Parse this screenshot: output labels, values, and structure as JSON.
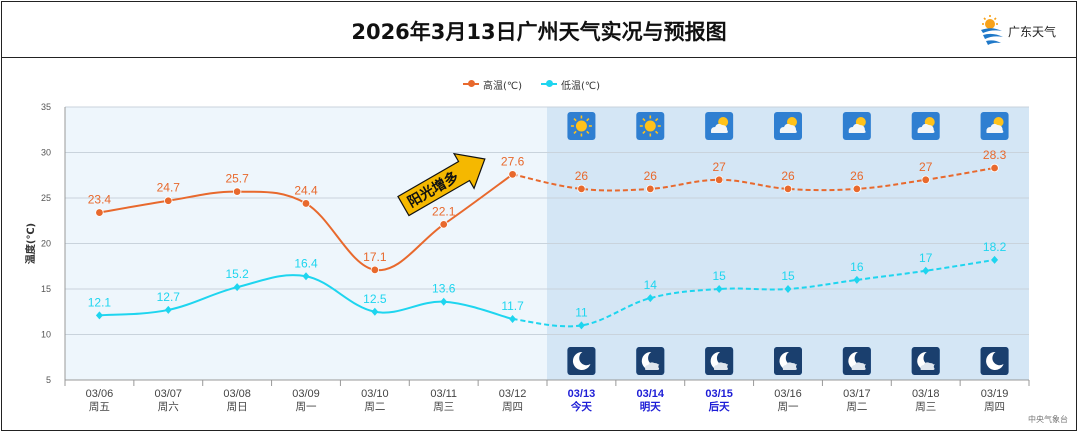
{
  "header": {
    "title": "2026年3月13日广州天气实况与预报图",
    "logo_text": "广东天气"
  },
  "credit": "中央气象台",
  "colors": {
    "high": "#e8692d",
    "low": "#1ed5ef",
    "past_bg": "#eef6fc",
    "forecast_bg": "#d4e6f5",
    "today_label": "#1d1dd6",
    "arrow": "#f5b800"
  },
  "annotation": "阳光增多",
  "chart_data": {
    "type": "line",
    "title": "2026年3月13日广州天气实况与预报图",
    "ylabel": "温度(℃)",
    "ylim": [
      5,
      35
    ],
    "yticks": [
      5,
      10,
      15,
      20,
      25,
      30,
      35
    ],
    "grid": true,
    "legend_position": "top-center",
    "categories": [
      "03/06",
      "03/07",
      "03/08",
      "03/09",
      "03/10",
      "03/11",
      "03/12",
      "03/13",
      "03/14",
      "03/15",
      "03/16",
      "03/17",
      "03/18",
      "03/19"
    ],
    "weekdays": [
      "周五",
      "周六",
      "周日",
      "周一",
      "周二",
      "周三",
      "周四",
      "今天",
      "明天",
      "后天",
      "周一",
      "周二",
      "周三",
      "周四"
    ],
    "highlight_indices": [
      7,
      8,
      9
    ],
    "forecast_start_index": 7,
    "series": [
      {
        "name": "高温(℃)",
        "values": [
          23.4,
          24.7,
          25.7,
          24.4,
          17.1,
          22.1,
          27.6,
          26,
          26,
          27,
          26,
          26,
          27,
          28.3
        ]
      },
      {
        "name": "低温(℃)",
        "values": [
          12.1,
          12.7,
          15.2,
          16.4,
          12.5,
          13.6,
          11.7,
          11,
          14,
          15,
          15,
          16,
          17,
          18.2
        ]
      }
    ],
    "day_icons": [
      "sunny-icon",
      "sunny-icon",
      "partly-cloudy-icon",
      "partly-cloudy-icon",
      "partly-cloudy-icon",
      "partly-cloudy-icon",
      "partly-cloudy-icon"
    ],
    "night_icons": [
      "clear-night-icon",
      "cloudy-night-icon",
      "cloudy-night-icon",
      "cloudy-night-icon",
      "cloudy-night-icon",
      "cloudy-night-icon",
      "clear-night-icon"
    ]
  }
}
